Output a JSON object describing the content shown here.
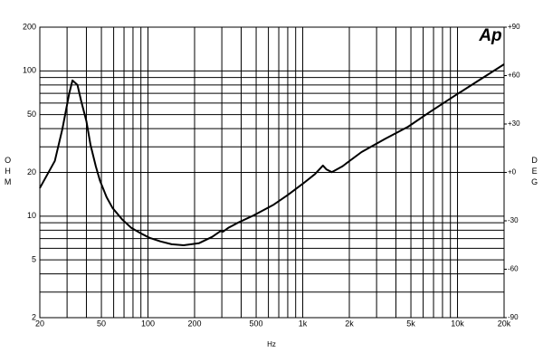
{
  "chart_data": {
    "type": "line",
    "x_label": "Hz",
    "y_label": "OHM",
    "y2_label": "DEG",
    "logo": "Ap",
    "x_log": true,
    "y_log": true,
    "grid": true,
    "xlim": [
      20,
      20000
    ],
    "ylim": [
      2,
      200
    ],
    "y2lim": [
      -90,
      90
    ],
    "xticks": [
      20,
      50,
      100,
      200,
      500,
      {
        "value": 1000,
        "label": "1k"
      },
      {
        "value": 2000,
        "label": "2k"
      },
      {
        "value": 5000,
        "label": "5k"
      },
      {
        "value": 10000,
        "label": "10k"
      },
      {
        "value": 20000,
        "label": "20k"
      }
    ],
    "yticks": [
      2,
      5,
      10,
      20,
      50,
      100,
      200
    ],
    "y2ticks": [
      {
        "value": 90,
        "label": "+90"
      },
      {
        "value": 60,
        "label": "+60"
      },
      {
        "value": 30,
        "label": "+30"
      },
      {
        "value": 0,
        "label": "+0"
      },
      -30,
      -60,
      -90
    ],
    "xgrid": [
      30,
      40,
      60,
      70,
      80,
      90,
      300,
      400,
      600,
      700,
      800,
      900,
      3000,
      4000,
      6000,
      7000,
      8000,
      9000
    ],
    "ygrid": [
      3,
      4,
      6,
      7,
      8,
      9,
      30,
      40,
      60,
      70,
      80,
      90
    ],
    "series": [
      {
        "color": "#000000",
        "x": [
          20,
          25,
          28,
          31,
          32.5,
          35,
          37,
          40,
          42.5,
          46,
          49,
          54,
          59,
          68,
          78,
          90,
          102,
          120,
          142,
          170,
          213,
          260,
          295,
          305,
          330,
          380,
          480,
          650,
          800,
          1000,
          1200,
          1350,
          1420,
          1540,
          1800,
          2400,
          3400,
          4800,
          6600,
          9300,
          13500,
          20000
        ],
        "values": [
          15.6,
          24,
          40,
          70,
          86,
          80,
          62,
          45,
          31,
          22,
          17.5,
          13.5,
          11.4,
          9.5,
          8.3,
          7.6,
          7.1,
          6.7,
          6.4,
          6.3,
          6.5,
          7.2,
          7.9,
          7.8,
          8.3,
          9,
          10.1,
          12,
          14,
          16.7,
          19.5,
          22.3,
          21,
          20.1,
          22,
          27.6,
          34,
          41.3,
          52,
          66,
          85,
          111
        ]
      }
    ]
  }
}
